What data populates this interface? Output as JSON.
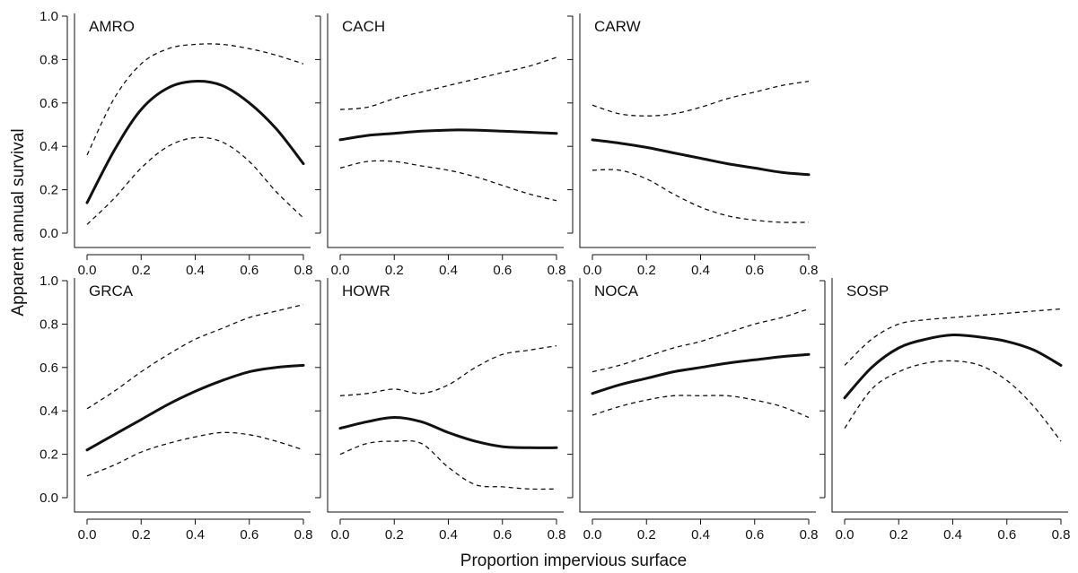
{
  "figure": {
    "ylabel": "Apparent annual survival",
    "xlabel": "Proportion impervious surface"
  },
  "chart_data": {
    "type": "line",
    "xlabel": "Proportion impervious surface",
    "ylabel": "Apparent annual survival",
    "xlim": [
      0,
      0.8
    ],
    "ylim": [
      0,
      1
    ],
    "xticks": [
      "0.0",
      "0.2",
      "0.4",
      "0.6",
      "0.8"
    ],
    "yticks": [
      "0.0",
      "0.2",
      "0.4",
      "0.6",
      "0.8",
      "1.0"
    ],
    "x": [
      0,
      0.1,
      0.2,
      0.3,
      0.4,
      0.5,
      0.6,
      0.7,
      0.8
    ],
    "panels": [
      {
        "label": "AMRO",
        "row": 0,
        "col": 0,
        "estimate": [
          0.14,
          0.38,
          0.57,
          0.67,
          0.7,
          0.68,
          0.6,
          0.48,
          0.32
        ],
        "upper": [
          0.36,
          0.62,
          0.78,
          0.85,
          0.87,
          0.87,
          0.85,
          0.82,
          0.78
        ],
        "lower": [
          0.04,
          0.16,
          0.3,
          0.4,
          0.44,
          0.42,
          0.33,
          0.19,
          0.07
        ]
      },
      {
        "label": "CACH",
        "row": 0,
        "col": 1,
        "estimate": [
          0.43,
          0.45,
          0.46,
          0.47,
          0.475,
          0.475,
          0.47,
          0.465,
          0.46
        ],
        "upper": [
          0.57,
          0.58,
          0.62,
          0.65,
          0.68,
          0.71,
          0.74,
          0.77,
          0.81
        ],
        "lower": [
          0.3,
          0.33,
          0.33,
          0.31,
          0.29,
          0.26,
          0.22,
          0.18,
          0.15
        ]
      },
      {
        "label": "CARW",
        "row": 0,
        "col": 2,
        "estimate": [
          0.43,
          0.415,
          0.395,
          0.37,
          0.345,
          0.32,
          0.3,
          0.28,
          0.27
        ],
        "upper": [
          0.59,
          0.55,
          0.54,
          0.55,
          0.58,
          0.62,
          0.65,
          0.68,
          0.7
        ],
        "lower": [
          0.29,
          0.29,
          0.25,
          0.18,
          0.12,
          0.08,
          0.06,
          0.05,
          0.05
        ]
      },
      {
        "label": "GRCA",
        "row": 1,
        "col": 0,
        "estimate": [
          0.22,
          0.29,
          0.36,
          0.43,
          0.49,
          0.54,
          0.58,
          0.6,
          0.61
        ],
        "upper": [
          0.41,
          0.49,
          0.58,
          0.66,
          0.73,
          0.78,
          0.83,
          0.86,
          0.89
        ],
        "lower": [
          0.1,
          0.15,
          0.21,
          0.25,
          0.28,
          0.3,
          0.29,
          0.26,
          0.22
        ]
      },
      {
        "label": "HOWR",
        "row": 1,
        "col": 1,
        "estimate": [
          0.32,
          0.35,
          0.37,
          0.35,
          0.3,
          0.26,
          0.235,
          0.23,
          0.23
        ],
        "upper": [
          0.47,
          0.48,
          0.5,
          0.48,
          0.52,
          0.6,
          0.66,
          0.68,
          0.7
        ],
        "lower": [
          0.2,
          0.25,
          0.26,
          0.25,
          0.14,
          0.06,
          0.05,
          0.04,
          0.04
        ]
      },
      {
        "label": "NOCA",
        "row": 1,
        "col": 2,
        "estimate": [
          0.48,
          0.52,
          0.55,
          0.58,
          0.6,
          0.62,
          0.635,
          0.65,
          0.66
        ],
        "upper": [
          0.58,
          0.61,
          0.65,
          0.69,
          0.72,
          0.76,
          0.8,
          0.83,
          0.87
        ],
        "lower": [
          0.38,
          0.42,
          0.45,
          0.47,
          0.47,
          0.47,
          0.45,
          0.42,
          0.37
        ]
      },
      {
        "label": "SOSP",
        "row": 1,
        "col": 3,
        "estimate": [
          0.46,
          0.6,
          0.69,
          0.73,
          0.75,
          0.74,
          0.72,
          0.68,
          0.61
        ],
        "upper": [
          0.61,
          0.73,
          0.8,
          0.82,
          0.83,
          0.84,
          0.85,
          0.86,
          0.87
        ],
        "lower": [
          0.32,
          0.5,
          0.58,
          0.62,
          0.63,
          0.61,
          0.54,
          0.42,
          0.26
        ]
      }
    ]
  }
}
